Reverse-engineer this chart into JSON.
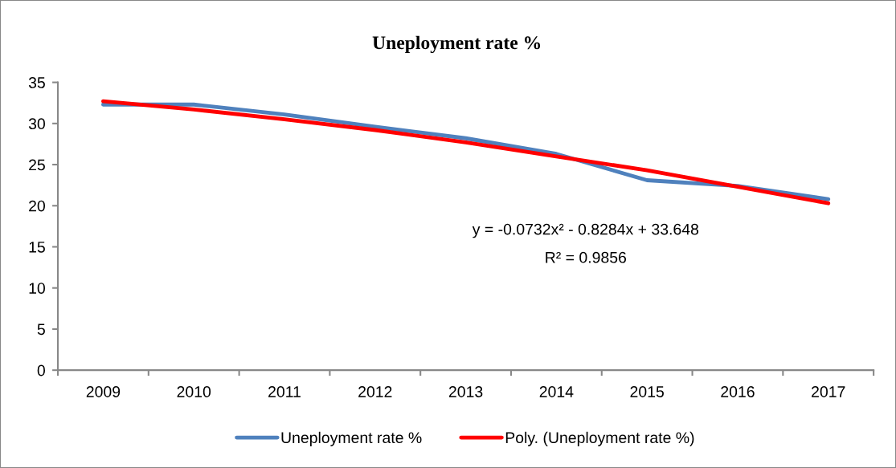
{
  "chart_data": {
    "type": "line",
    "title": "Uneployment rate %",
    "categories": [
      "2009",
      "2010",
      "2011",
      "2012",
      "2013",
      "2014",
      "2015",
      "2016",
      "2017"
    ],
    "series": [
      {
        "name": "Uneployment rate %",
        "color": "#4f81bd",
        "values": [
          32.3,
          32.3,
          31.1,
          29.6,
          28.2,
          26.3,
          23.1,
          22.4,
          20.8
        ]
      },
      {
        "name": "Poly. (Uneployment rate %)",
        "color": "#ff0000",
        "type": "line",
        "values": [
          32.7,
          31.7,
          30.5,
          29.2,
          27.7,
          26.0,
          24.3,
          22.3,
          20.3
        ]
      }
    ],
    "ylim": [
      0,
      35
    ],
    "yticks": [
      0,
      5,
      10,
      15,
      20,
      25,
      30,
      35
    ],
    "grid": false,
    "legend": "bottom",
    "annotations": [
      "y = -0.0732x² - 0.8284x + 33.648",
      "R² = 0.9856"
    ]
  }
}
